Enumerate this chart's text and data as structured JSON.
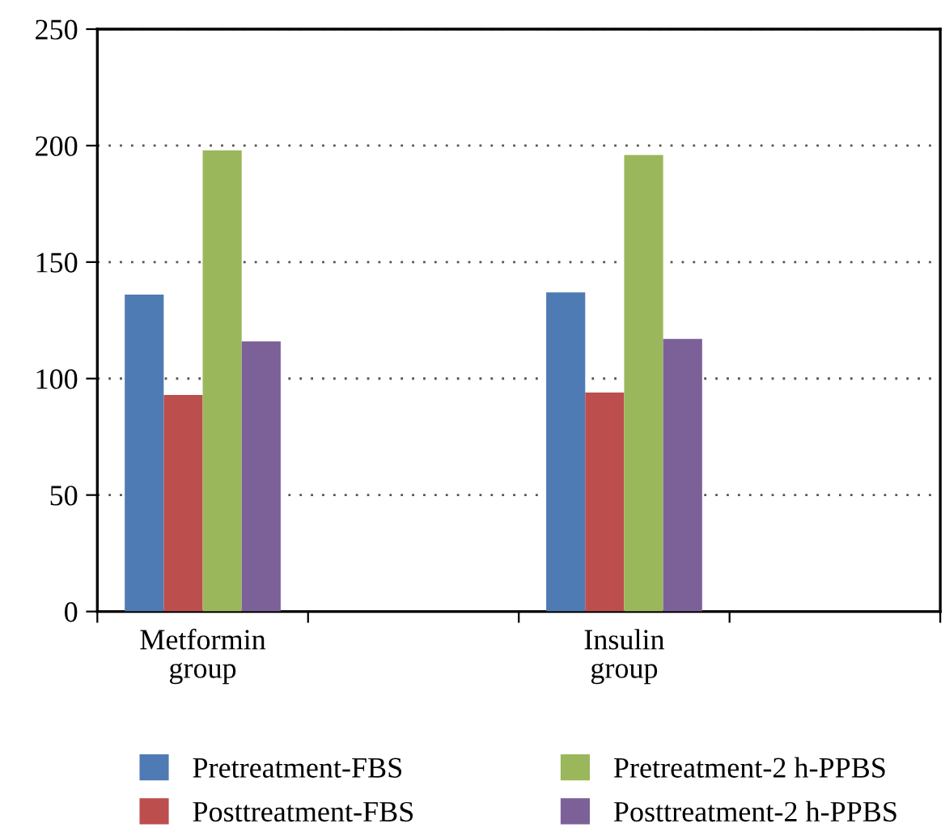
{
  "chart_data": {
    "type": "bar",
    "categories": [
      "Metformin group",
      null,
      "Insulin group",
      null
    ],
    "series": [
      {
        "name": "Pretreatment-FBS",
        "color": "#4f7bb4",
        "values": [
          136,
          null,
          137,
          null
        ]
      },
      {
        "name": "Posttreatment-FBS",
        "color": "#bc4f4d",
        "values": [
          93,
          null,
          94,
          null
        ]
      },
      {
        "name": "Pretreatment-2 h-PPBS",
        "color": "#9bb75c",
        "values": [
          198,
          null,
          196,
          null
        ]
      },
      {
        "name": "Posttreatment-2 h-PPBS",
        "color": "#7c6199",
        "values": [
          116,
          null,
          117,
          null
        ]
      }
    ],
    "ylim": [
      0,
      250
    ],
    "yticks": [
      0,
      50,
      100,
      150,
      200,
      250
    ],
    "grid": "y",
    "legend": "bottom"
  }
}
